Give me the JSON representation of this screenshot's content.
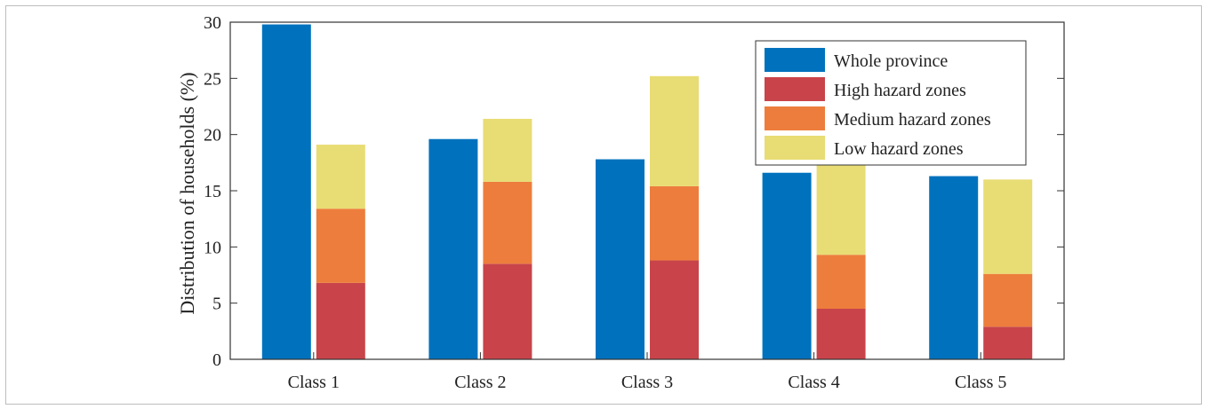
{
  "chart_data": {
    "type": "bar",
    "categories": [
      "Class 1",
      "Class 2",
      "Class 3",
      "Class 4",
      "Class 5"
    ],
    "ylabel": "Distribution of households (%)",
    "xlabel": "",
    "ylim": [
      0,
      30
    ],
    "yticks": [
      0,
      5,
      10,
      15,
      20,
      25,
      30
    ],
    "grid": false,
    "legend_position": "top-right",
    "series": [
      {
        "name": "Whole province",
        "stack": "whole",
        "color": "#0072BD",
        "values": [
          29.8,
          19.6,
          17.8,
          16.6,
          16.3
        ]
      },
      {
        "name": "High hazard zones",
        "stack": "zones",
        "color": "#C8444A",
        "values": [
          6.8,
          8.5,
          8.8,
          4.5,
          2.9
        ]
      },
      {
        "name": "Medium hazard zones",
        "stack": "zones",
        "color": "#ED7D3C",
        "values": [
          6.6,
          7.3,
          6.6,
          4.8,
          4.7
        ]
      },
      {
        "name": "Low hazard zones",
        "stack": "zones",
        "color": "#E8DC74",
        "values": [
          5.7,
          5.6,
          9.8,
          8.9,
          8.4
        ]
      }
    ]
  }
}
